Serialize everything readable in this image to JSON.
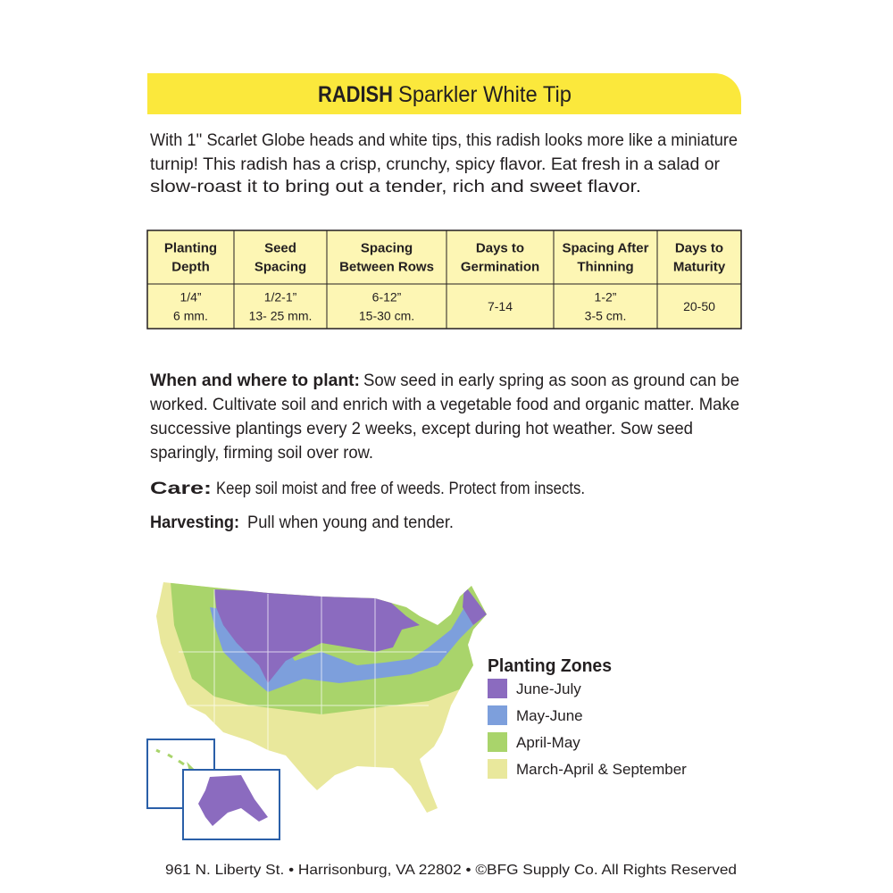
{
  "header": {
    "title_bold": "RADISH",
    "title_rest": "Sparkler White Tip"
  },
  "description": [
    "With 1'' Scarlet Globe heads and white tips, this radish looks more like a miniature",
    "turnip!  This radish has a crisp, crunchy, spicy flavor. Eat fresh in a salad or",
    "slow-roast it to bring out a tender, rich and sweet flavor."
  ],
  "table": {
    "headers": [
      [
        "Planting",
        "Depth"
      ],
      [
        "Seed",
        "Spacing"
      ],
      [
        "Spacing",
        "Between Rows"
      ],
      [
        "Days to",
        "Germination"
      ],
      [
        "Spacing After",
        "Thinning"
      ],
      [
        "Days to",
        "Maturity"
      ]
    ],
    "rows": [
      [
        [
          "1/4”",
          "6 mm."
        ],
        [
          "1/2-1”",
          "13- 25 mm."
        ],
        [
          "6-12”",
          "15-30 cm."
        ],
        [
          "7-14"
        ],
        [
          "1-2”",
          "3-5 cm."
        ],
        [
          "20-50"
        ]
      ]
    ]
  },
  "sections": [
    {
      "label": "When and where to plant:",
      "lines": [
        "Sow seed in early spring as soon as ground can be",
        "worked. Cultivate soil and enrich with a vegetable food and organic matter. Make",
        "successive plantings every 2 weeks, except during hot weather. Sow seed",
        "sparingly, firming soil over row."
      ]
    },
    {
      "label": "Care:",
      "lines": [
        "Keep soil moist and free of weeds. Protect from insects."
      ]
    },
    {
      "label": "Harvesting:",
      "lines": [
        "Pull when young and tender."
      ]
    }
  ],
  "legend": {
    "title": "Planting Zones",
    "items": [
      {
        "label": "June-July",
        "color": "#8b6bbf"
      },
      {
        "label": "May-June",
        "color": "#7d9fdc"
      },
      {
        "label": "April-May",
        "color": "#a9d46b"
      },
      {
        "label": "March-April & September",
        "color": "#e9e89c"
      }
    ]
  },
  "footer": "961 N. Liberty St. • Harrisonburg, VA 22802 • ©BFG Supply Co. All Rights Reserved"
}
